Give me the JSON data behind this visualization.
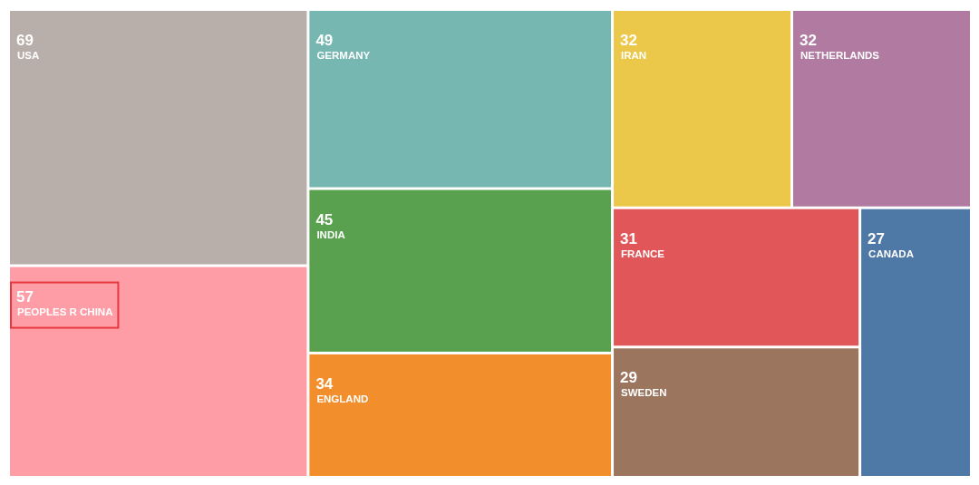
{
  "chart_data": {
    "type": "other",
    "categories": [
      "USA",
      "PEOPLES R CHINA",
      "GERMANY",
      "INDIA",
      "ENGLAND",
      "IRAN",
      "NETHERLANDS",
      "FRANCE",
      "SWEDEN",
      "CANADA"
    ],
    "values": [
      69,
      57,
      49,
      45,
      34,
      32,
      32,
      31,
      29,
      27
    ],
    "colors": [
      "#b8afaa",
      "#ff9da7",
      "#76b7b2",
      "#59a14f",
      "#f28e2b",
      "#ebc84a",
      "#b07aa1",
      "#e15759",
      "#9c755f",
      "#4e79a7"
    ],
    "data_labels": true
  }
}
